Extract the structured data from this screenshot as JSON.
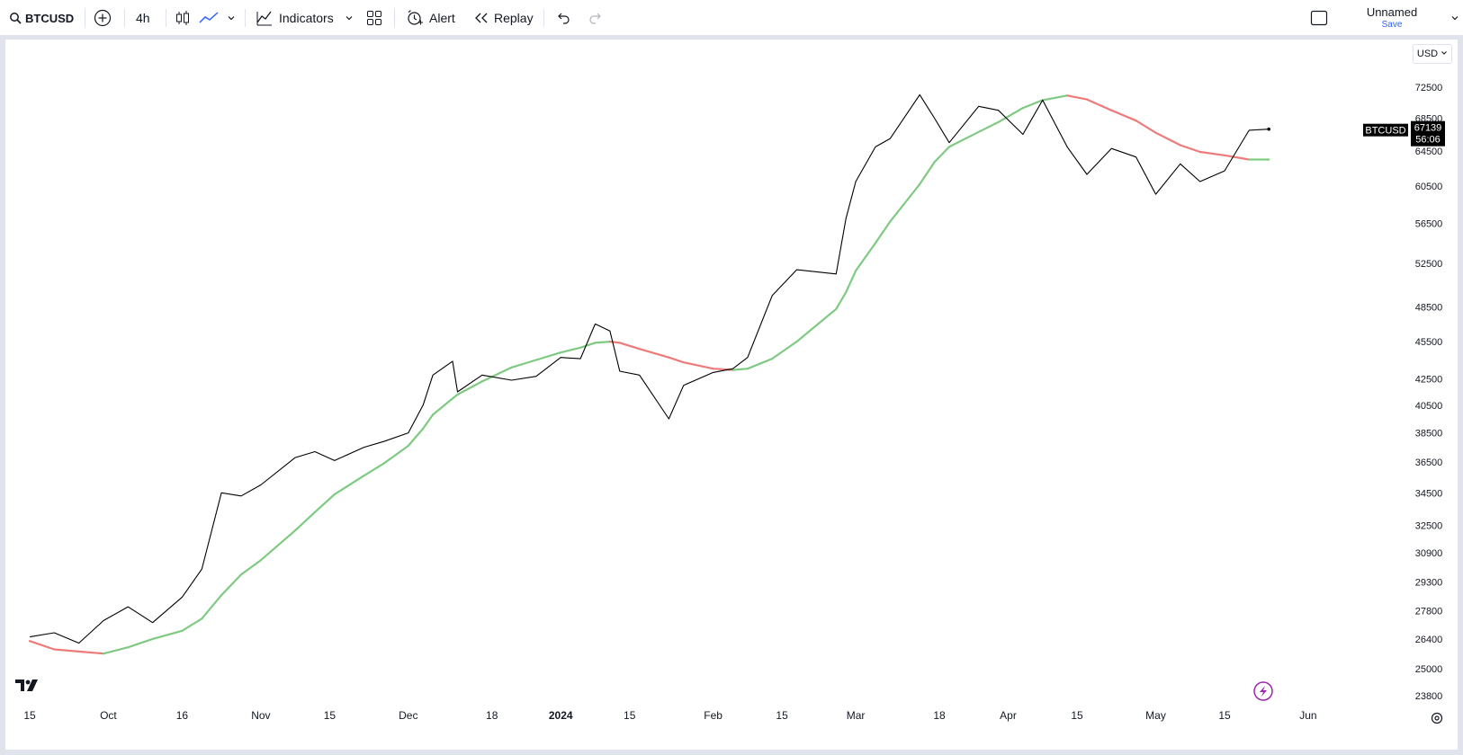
{
  "toolbar": {
    "symbol": "BTCUSD",
    "interval": "4h",
    "indicators_label": "Indicators",
    "alert_label": "Alert",
    "replay_label": "Replay",
    "layout_name": "Unnamed",
    "save_label": "Save"
  },
  "chart": {
    "currency": "USD",
    "price_tag_symbol": "BTCUSD",
    "last_price": "67139",
    "countdown": "56:06",
    "colors": {
      "price_line": "#000000",
      "ma_up": "#7fca82",
      "ma_down": "#ee7a7a",
      "tag_bg": "#000000"
    },
    "icons": [
      "logo-icon",
      "lightning-icon",
      "settings-icon"
    ]
  },
  "chart_data": {
    "type": "line",
    "y_ticks": [
      "72500",
      "68500",
      "64500",
      "60500",
      "56500",
      "52500",
      "48500",
      "45500",
      "42500",
      "40500",
      "38500",
      "36500",
      "34500",
      "32500",
      "30900",
      "29300",
      "27800",
      "26400",
      "25000",
      "23800"
    ],
    "x_ticks": [
      "15",
      "Oct",
      "16",
      "Nov",
      "15",
      "Dec",
      "18",
      "2024",
      "15",
      "Feb",
      "15",
      "Mar",
      "18",
      "Apr",
      "15",
      "May",
      "15",
      "Jun"
    ],
    "ylim": [
      23000,
      77000
    ],
    "series": [
      {
        "name": "BTCUSD",
        "x": [
          "2023-09-15",
          "2023-09-20",
          "2023-09-25",
          "2023-09-30",
          "2023-10-05",
          "2023-10-10",
          "2023-10-16",
          "2023-10-20",
          "2023-10-24",
          "2023-10-28",
          "2023-11-01",
          "2023-11-08",
          "2023-11-12",
          "2023-11-16",
          "2023-11-22",
          "2023-11-26",
          "2023-12-01",
          "2023-12-04",
          "2023-12-06",
          "2023-12-10",
          "2023-12-11",
          "2023-12-16",
          "2023-12-22",
          "2023-12-27",
          "2024-01-01",
          "2024-01-05",
          "2024-01-08",
          "2024-01-11",
          "2024-01-13",
          "2024-01-17",
          "2024-01-23",
          "2024-01-26",
          "2024-02-01",
          "2024-02-05",
          "2024-02-08",
          "2024-02-13",
          "2024-02-18",
          "2024-02-26",
          "2024-02-28",
          "2024-03-01",
          "2024-03-05",
          "2024-03-08",
          "2024-03-14",
          "2024-03-17",
          "2024-03-20",
          "2024-03-26",
          "2024-03-30",
          "2024-04-04",
          "2024-04-08",
          "2024-04-13",
          "2024-04-17",
          "2024-04-22",
          "2024-04-27",
          "2024-05-01",
          "2024-05-06",
          "2024-05-10",
          "2024-05-15",
          "2024-05-20",
          "2024-05-24"
        ],
        "y": [
          26500,
          26700,
          26200,
          27300,
          28000,
          27200,
          28500,
          30000,
          34500,
          34300,
          35000,
          36800,
          37200,
          36600,
          37500,
          37900,
          38500,
          40500,
          42800,
          43900,
          41500,
          42800,
          42400,
          42700,
          44200,
          44100,
          47000,
          46400,
          43100,
          42800,
          39500,
          42000,
          43000,
          43300,
          44200,
          49500,
          51900,
          51500,
          57000,
          61000,
          65000,
          66000,
          71500,
          68500,
          65500,
          70000,
          69500,
          66500,
          70800,
          65000,
          61800,
          64800,
          63800,
          59600,
          63000,
          61000,
          62200,
          67000,
          67139
        ]
      },
      {
        "name": "MA",
        "x": [
          "2023-09-15",
          "2023-09-20",
          "2023-09-25",
          "2023-09-30",
          "2023-10-05",
          "2023-10-10",
          "2023-10-16",
          "2023-10-20",
          "2023-10-24",
          "2023-10-28",
          "2023-11-01",
          "2023-11-08",
          "2023-11-12",
          "2023-11-16",
          "2023-11-22",
          "2023-11-26",
          "2023-12-01",
          "2023-12-04",
          "2023-12-06",
          "2023-12-10",
          "2023-12-11",
          "2023-12-16",
          "2023-12-22",
          "2023-12-27",
          "2024-01-01",
          "2024-01-05",
          "2024-01-08",
          "2024-01-11",
          "2024-01-13",
          "2024-01-17",
          "2024-01-23",
          "2024-01-26",
          "2024-02-01",
          "2024-02-05",
          "2024-02-08",
          "2024-02-13",
          "2024-02-18",
          "2024-02-26",
          "2024-02-28",
          "2024-03-01",
          "2024-03-05",
          "2024-03-08",
          "2024-03-14",
          "2024-03-17",
          "2024-03-20",
          "2024-03-26",
          "2024-03-30",
          "2024-04-04",
          "2024-04-08",
          "2024-04-13",
          "2024-04-17",
          "2024-04-22",
          "2024-04-27",
          "2024-05-01",
          "2024-05-06",
          "2024-05-10",
          "2024-05-15",
          "2024-05-20",
          "2024-05-24"
        ],
        "y": [
          26300,
          25900,
          25800,
          25700,
          26000,
          26400,
          26800,
          27400,
          28600,
          29700,
          30500,
          32200,
          33300,
          34400,
          35600,
          36400,
          37600,
          38800,
          39800,
          41000,
          41300,
          42300,
          43400,
          44000,
          44600,
          45000,
          45400,
          45500,
          45400,
          44900,
          44200,
          43800,
          43300,
          43200,
          43300,
          44100,
          45500,
          48300,
          49800,
          51800,
          54500,
          56700,
          60700,
          63200,
          65000,
          66800,
          68000,
          69800,
          70800,
          71400,
          70900,
          69500,
          68200,
          66700,
          65200,
          64400,
          64000,
          63500,
          63500
        ]
      }
    ]
  }
}
